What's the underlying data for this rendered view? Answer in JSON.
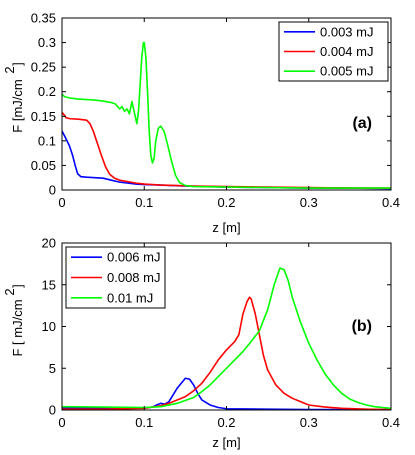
{
  "chart_data": [
    {
      "type": "line",
      "panel_label": "(a)",
      "xlabel": "z [m]",
      "ylabel": "F [mJ/cm",
      "ylabel_sup": "2",
      "ylabel_close": "]",
      "xlim": [
        0,
        0.4
      ],
      "ylim": [
        0,
        0.35
      ],
      "xticks": [
        0,
        0.1,
        0.2,
        0.3,
        0.4
      ],
      "yticks": [
        0,
        0.05,
        0.1,
        0.15,
        0.2,
        0.25,
        0.3,
        0.35
      ],
      "xtick_labels": [
        "0",
        "0.1",
        "0.2",
        "0.3",
        "0.4"
      ],
      "ytick_labels": [
        "0",
        "0.05",
        "0.1",
        "0.15",
        "0.2",
        "0.25",
        "0.3",
        "0.35"
      ],
      "grid": false,
      "legend_position": "top-right",
      "series": [
        {
          "name": "0.003 mJ",
          "color": "#0000ff",
          "points": [
            [
              0,
              0.12
            ],
            [
              0.004,
              0.107
            ],
            [
              0.009,
              0.09
            ],
            [
              0.013,
              0.07
            ],
            [
              0.016,
              0.05
            ],
            [
              0.019,
              0.033
            ],
            [
              0.023,
              0.027
            ],
            [
              0.03,
              0.026
            ],
            [
              0.04,
              0.025
            ],
            [
              0.05,
              0.024
            ],
            [
              0.06,
              0.02
            ],
            [
              0.07,
              0.016
            ],
            [
              0.08,
              0.014
            ],
            [
              0.09,
              0.012
            ],
            [
              0.1,
              0.011
            ],
            [
              0.12,
              0.01
            ],
            [
              0.15,
              0.008
            ],
            [
              0.18,
              0.007
            ],
            [
              0.2,
              0.006
            ],
            [
              0.25,
              0.005
            ],
            [
              0.3,
              0.004
            ],
            [
              0.35,
              0.004
            ],
            [
              0.4,
              0.003
            ]
          ]
        },
        {
          "name": "0.004 mJ",
          "color": "#ff0000",
          "points": [
            [
              0,
              0.158
            ],
            [
              0.003,
              0.152
            ],
            [
              0.005,
              0.147
            ],
            [
              0.01,
              0.145
            ],
            [
              0.02,
              0.144
            ],
            [
              0.03,
              0.142
            ],
            [
              0.034,
              0.135
            ],
            [
              0.038,
              0.12
            ],
            [
              0.043,
              0.095
            ],
            [
              0.048,
              0.07
            ],
            [
              0.053,
              0.047
            ],
            [
              0.058,
              0.032
            ],
            [
              0.064,
              0.024
            ],
            [
              0.07,
              0.02
            ],
            [
              0.08,
              0.017
            ],
            [
              0.09,
              0.014
            ],
            [
              0.1,
              0.012
            ],
            [
              0.12,
              0.01
            ],
            [
              0.14,
              0.009
            ],
            [
              0.16,
              0.008
            ],
            [
              0.2,
              0.007
            ],
            [
              0.25,
              0.006
            ],
            [
              0.3,
              0.005
            ],
            [
              0.35,
              0.004
            ],
            [
              0.4,
              0.004
            ]
          ]
        },
        {
          "name": "0.005 mJ",
          "color": "#00ff00",
          "points": [
            [
              0,
              0.195
            ],
            [
              0.003,
              0.19
            ],
            [
              0.01,
              0.187
            ],
            [
              0.02,
              0.185
            ],
            [
              0.03,
              0.184
            ],
            [
              0.04,
              0.183
            ],
            [
              0.05,
              0.181
            ],
            [
              0.06,
              0.178
            ],
            [
              0.065,
              0.175
            ],
            [
              0.07,
              0.165
            ],
            [
              0.073,
              0.17
            ],
            [
              0.076,
              0.16
            ],
            [
              0.079,
              0.165
            ],
            [
              0.082,
              0.155
            ],
            [
              0.085,
              0.18
            ],
            [
              0.087,
              0.165
            ],
            [
              0.089,
              0.15
            ],
            [
              0.091,
              0.135
            ],
            [
              0.093,
              0.16
            ],
            [
              0.095,
              0.215
            ],
            [
              0.097,
              0.27
            ],
            [
              0.099,
              0.3
            ],
            [
              0.1,
              0.3
            ],
            [
              0.102,
              0.27
            ],
            [
              0.104,
              0.2
            ],
            [
              0.106,
              0.12
            ],
            [
              0.108,
              0.07
            ],
            [
              0.11,
              0.055
            ],
            [
              0.112,
              0.065
            ],
            [
              0.114,
              0.1
            ],
            [
              0.117,
              0.125
            ],
            [
              0.12,
              0.13
            ],
            [
              0.124,
              0.12
            ],
            [
              0.128,
              0.095
            ],
            [
              0.133,
              0.06
            ],
            [
              0.138,
              0.03
            ],
            [
              0.143,
              0.015
            ],
            [
              0.15,
              0.009
            ],
            [
              0.16,
              0.007
            ],
            [
              0.2,
              0.006
            ],
            [
              0.25,
              0.005
            ],
            [
              0.3,
              0.004
            ],
            [
              0.35,
              0.004
            ],
            [
              0.4,
              0.004
            ]
          ]
        }
      ]
    },
    {
      "type": "line",
      "panel_label": "(b)",
      "xlabel": "z [m]",
      "ylabel": "F [ mJ/cm",
      "ylabel_sup": "2",
      "ylabel_close": "]",
      "xlim": [
        0,
        0.4
      ],
      "ylim": [
        0,
        20
      ],
      "xticks": [
        0,
        0.1,
        0.2,
        0.3,
        0.4
      ],
      "yticks": [
        0,
        5,
        10,
        15,
        20
      ],
      "xtick_labels": [
        "0",
        "0.1",
        "0.2",
        "0.3",
        "0.4"
      ],
      "ytick_labels": [
        "0",
        "5",
        "10",
        "15",
        "20"
      ],
      "grid": false,
      "legend_position": "top-left",
      "series": [
        {
          "name": "0.006 mJ",
          "color": "#0000ff",
          "points": [
            [
              0,
              0.2
            ],
            [
              0.05,
              0.2
            ],
            [
              0.1,
              0.25
            ],
            [
              0.11,
              0.35
            ],
            [
              0.115,
              0.6
            ],
            [
              0.12,
              0.8
            ],
            [
              0.125,
              0.7
            ],
            [
              0.13,
              1.0
            ],
            [
              0.135,
              1.8
            ],
            [
              0.14,
              2.6
            ],
            [
              0.145,
              3.2
            ],
            [
              0.15,
              3.8
            ],
            [
              0.155,
              3.7
            ],
            [
              0.16,
              3.0
            ],
            [
              0.165,
              2.0
            ],
            [
              0.17,
              1.2
            ],
            [
              0.18,
              0.6
            ],
            [
              0.19,
              0.3
            ],
            [
              0.2,
              0.15
            ],
            [
              0.25,
              0.1
            ],
            [
              0.3,
              0.05
            ],
            [
              0.4,
              0.05
            ]
          ]
        },
        {
          "name": "0.008 mJ",
          "color": "#ff0000",
          "points": [
            [
              0,
              0.1
            ],
            [
              0.05,
              0.1
            ],
            [
              0.1,
              0.2
            ],
            [
              0.12,
              0.5
            ],
            [
              0.13,
              0.8
            ],
            [
              0.14,
              1.2
            ],
            [
              0.15,
              1.6
            ],
            [
              0.16,
              2.3
            ],
            [
              0.17,
              3.2
            ],
            [
              0.18,
              4.5
            ],
            [
              0.19,
              6.0
            ],
            [
              0.2,
              7.2
            ],
            [
              0.21,
              8.2
            ],
            [
              0.215,
              9.0
            ],
            [
              0.22,
              11.5
            ],
            [
              0.225,
              13.0
            ],
            [
              0.228,
              13.5
            ],
            [
              0.23,
              13.3
            ],
            [
              0.235,
              11.5
            ],
            [
              0.24,
              9.0
            ],
            [
              0.245,
              6.5
            ],
            [
              0.25,
              4.8
            ],
            [
              0.26,
              3.0
            ],
            [
              0.27,
              2.0
            ],
            [
              0.28,
              1.4
            ],
            [
              0.29,
              1.0
            ],
            [
              0.3,
              0.6
            ],
            [
              0.32,
              0.35
            ],
            [
              0.34,
              0.2
            ],
            [
              0.37,
              0.1
            ],
            [
              0.4,
              0.05
            ]
          ]
        },
        {
          "name": "0.01 mJ",
          "color": "#00ff00",
          "points": [
            [
              0,
              0.4
            ],
            [
              0.05,
              0.35
            ],
            [
              0.1,
              0.3
            ],
            [
              0.12,
              0.4
            ],
            [
              0.14,
              0.8
            ],
            [
              0.16,
              1.5
            ],
            [
              0.17,
              2.2
            ],
            [
              0.18,
              3.0
            ],
            [
              0.19,
              4.0
            ],
            [
              0.2,
              5.0
            ],
            [
              0.21,
              6.0
            ],
            [
              0.22,
              7.0
            ],
            [
              0.23,
              8.2
            ],
            [
              0.24,
              9.5
            ],
            [
              0.25,
              12.0
            ],
            [
              0.258,
              15.0
            ],
            [
              0.265,
              17.0
            ],
            [
              0.27,
              16.8
            ],
            [
              0.275,
              15.5
            ],
            [
              0.28,
              13.5
            ],
            [
              0.29,
              10.5
            ],
            [
              0.3,
              8.0
            ],
            [
              0.31,
              6.0
            ],
            [
              0.32,
              4.3
            ],
            [
              0.33,
              3.0
            ],
            [
              0.34,
              2.0
            ],
            [
              0.35,
              1.3
            ],
            [
              0.36,
              0.9
            ],
            [
              0.37,
              0.6
            ],
            [
              0.38,
              0.4
            ],
            [
              0.39,
              0.3
            ],
            [
              0.4,
              0.2
            ]
          ]
        }
      ]
    }
  ]
}
